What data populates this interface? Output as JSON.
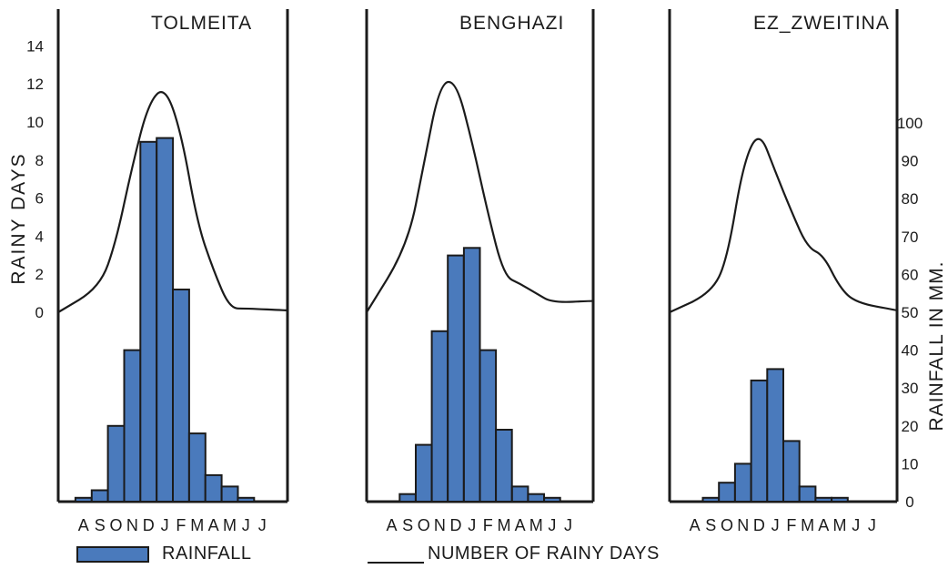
{
  "chart_data": [
    {
      "type": "bar+line",
      "title": "TOLMEITA",
      "categories": [
        "A",
        "S",
        "O",
        "N",
        "D",
        "J",
        "F",
        "M",
        "A",
        "M",
        "J",
        "J"
      ],
      "rainfall_mm": [
        1,
        3,
        20,
        40,
        95,
        96,
        56,
        18,
        7,
        4,
        1,
        0
      ],
      "rainy_days": [
        0,
        1.3,
        3.7,
        7.7,
        11.0,
        11.9,
        9.5,
        4.7,
        2.2,
        0.2,
        0.2,
        0.1
      ]
    },
    {
      "type": "bar+line",
      "title": "BENGHAZI",
      "categories": [
        "A",
        "S",
        "O",
        "N",
        "D",
        "J",
        "F",
        "M",
        "A",
        "M",
        "J",
        "J"
      ],
      "rainfall_mm": [
        0,
        2,
        15,
        45,
        65,
        67,
        40,
        19,
        4,
        2,
        1,
        0
      ],
      "rainy_days": [
        0,
        3.5,
        7.8,
        12.0,
        12.2,
        9.0,
        5.2,
        1.9,
        1.5,
        1.0,
        0.5,
        0.6
      ]
    },
    {
      "type": "bar+line",
      "title": "EZ_ZWEITINA",
      "categories": [
        "A",
        "S",
        "O",
        "N",
        "D",
        "J",
        "F",
        "M",
        "A",
        "M",
        "J",
        "J"
      ],
      "rainfall_mm": [
        0,
        1,
        5,
        10,
        32,
        35,
        16,
        4,
        1,
        1,
        0,
        0
      ],
      "rainy_days": [
        0,
        1.0,
        2.7,
        7.8,
        9.6,
        7.4,
        5.3,
        3.4,
        3.0,
        1.3,
        0.5,
        0.1
      ]
    }
  ],
  "left_axis": {
    "label": "RAINY  DAYS",
    "ticks": [
      0,
      2,
      4,
      6,
      8,
      10,
      12,
      14
    ],
    "range": [
      0,
      14
    ]
  },
  "right_axis": {
    "label": "RAINFALL IN MM.",
    "ticks": [
      0,
      10,
      20,
      30,
      40,
      50,
      60,
      70,
      80,
      90,
      100
    ],
    "range": [
      0,
      100
    ]
  },
  "legend": {
    "rainfall": "RAINFALL",
    "rainy_days": "NUMBER OF  RAINY  DAYS"
  },
  "colors": {
    "bar_fill": "#4a7abc",
    "bar_stroke": "#1b1b1b",
    "line": "#1b1b1b"
  }
}
